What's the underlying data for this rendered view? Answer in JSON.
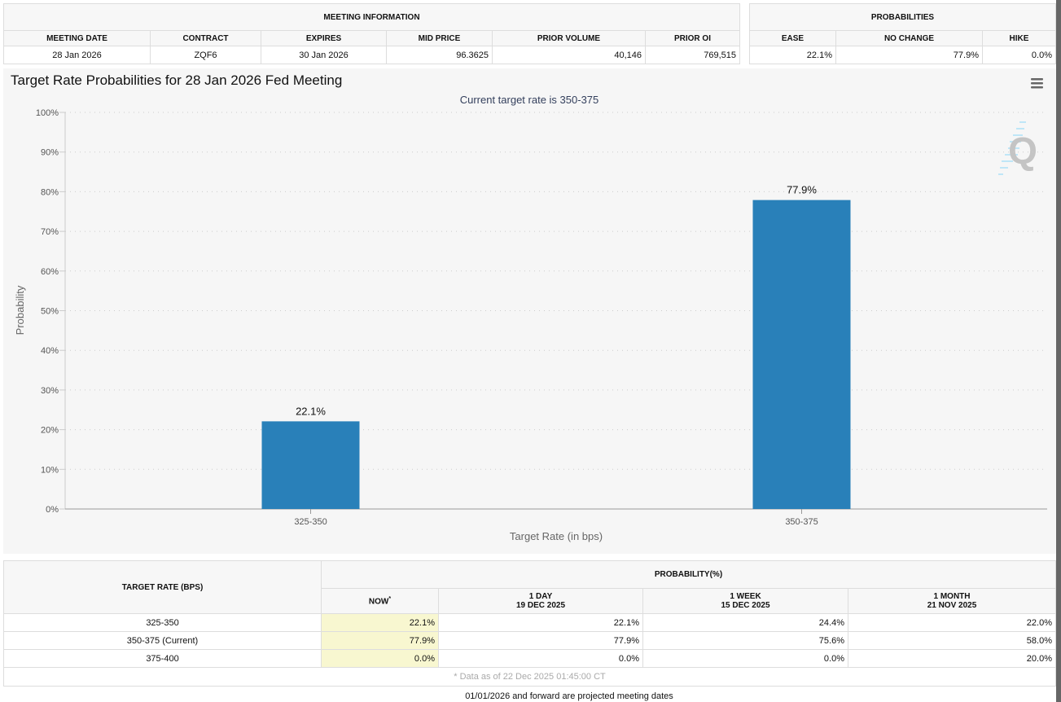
{
  "meeting_info": {
    "title": "MEETING INFORMATION",
    "headers": [
      "MEETING DATE",
      "CONTRACT",
      "EXPIRES",
      "MID PRICE",
      "PRIOR VOLUME",
      "PRIOR OI"
    ],
    "values": [
      "28 Jan 2026",
      "ZQF6",
      "30 Jan 2026",
      "96.3625",
      "40,146",
      "769,515"
    ]
  },
  "probabilities": {
    "title": "PROBABILITIES",
    "headers": [
      "EASE",
      "NO CHANGE",
      "HIKE"
    ],
    "values": [
      "22.1%",
      "77.9%",
      "0.0%"
    ]
  },
  "chart_data": {
    "type": "bar",
    "title": "Target Rate Probabilities for 28 Jan 2026 Fed Meeting",
    "subtitle": "Current target rate is 350-375",
    "xlabel": "Target Rate (in bps)",
    "ylabel": "Probability",
    "categories": [
      "325-350",
      "350-375"
    ],
    "values": [
      22.1,
      77.9
    ],
    "data_labels": [
      "22.1%",
      "77.9%"
    ],
    "ylim": [
      0,
      100
    ],
    "yticks": [
      "0%",
      "10%",
      "20%",
      "30%",
      "40%",
      "50%",
      "60%",
      "70%",
      "80%",
      "90%",
      "100%"
    ],
    "grid": true,
    "color": "#2980b9",
    "menu_icon": "hamburger-menu-icon",
    "watermark": "Q"
  },
  "bottom_table": {
    "rate_header": "TARGET RATE (BPS)",
    "prob_header": "PROBABILITY(%)",
    "columns": [
      {
        "l1": "NOW",
        "sup": "*"
      },
      {
        "l1": "1 DAY",
        "l2": "19 DEC 2025"
      },
      {
        "l1": "1 WEEK",
        "l2": "15 DEC 2025"
      },
      {
        "l1": "1 MONTH",
        "l2": "21 NOV 2025"
      }
    ],
    "rows": [
      {
        "rate": "325-350",
        "vals": [
          "22.1%",
          "22.1%",
          "24.4%",
          "22.0%"
        ]
      },
      {
        "rate": "350-375 (Current)",
        "vals": [
          "77.9%",
          "77.9%",
          "75.6%",
          "58.0%"
        ]
      },
      {
        "rate": "375-400",
        "vals": [
          "0.0%",
          "0.0%",
          "0.0%",
          "20.0%"
        ]
      }
    ],
    "footnote": "* Data as of 22 Dec 2025 01:45:00 CT"
  },
  "note": "01/01/2026 and forward are projected meeting dates"
}
